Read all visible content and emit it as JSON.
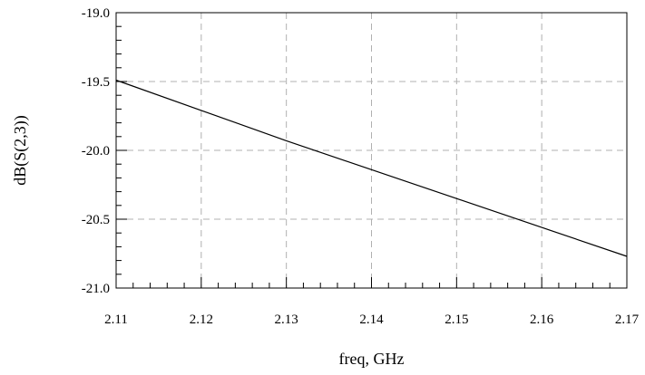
{
  "chart_data": {
    "type": "line",
    "xlabel": "freq, GHz",
    "ylabel": "dB(S(2,3))",
    "xlim": [
      2.11,
      2.17
    ],
    "ylim": [
      -21.0,
      -19.0
    ],
    "x_ticks": [
      "2.11",
      "2.12",
      "2.13",
      "2.14",
      "2.15",
      "2.16",
      "2.17"
    ],
    "y_ticks": [
      "-19.0",
      "-19.5",
      "-20.0",
      "-20.5",
      "-21.0"
    ],
    "grid": true,
    "grid_style": "dashed",
    "series": [
      {
        "color": "#000000",
        "x": [
          2.11,
          2.12,
          2.13,
          2.14,
          2.15,
          2.16,
          2.17
        ],
        "y": [
          -19.49,
          -19.71,
          -19.93,
          -20.14,
          -20.35,
          -20.56,
          -20.77
        ]
      }
    ]
  }
}
